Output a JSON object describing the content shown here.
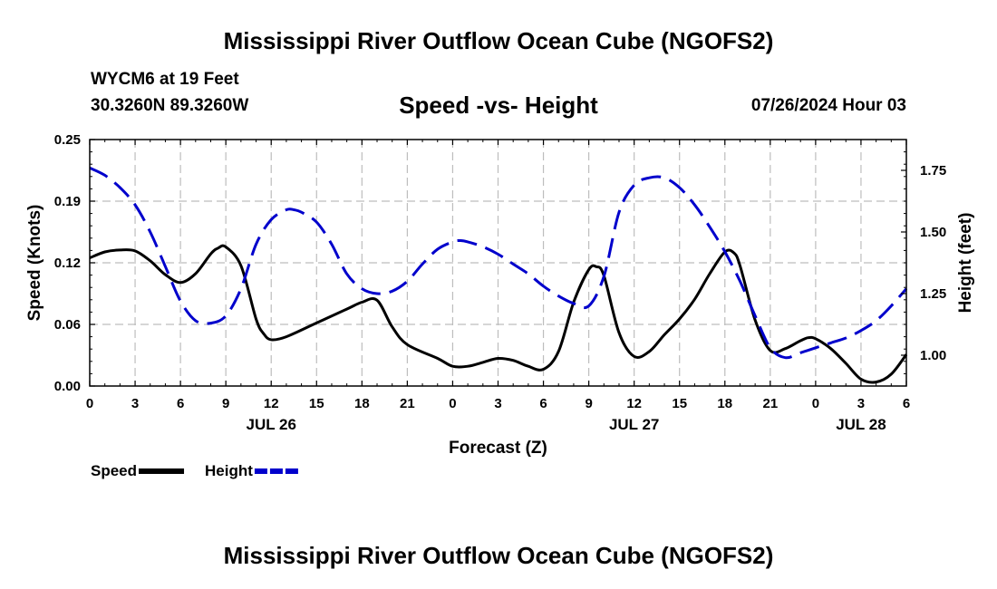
{
  "title": "Mississippi River Outflow Ocean Cube (NGOFS2)",
  "station": "WYCM6 at 19 Feet",
  "coordinates": "30.3260N  89.3260W",
  "subtitle": "Speed -vs- Height",
  "datestamp": "07/26/2024 Hour 03",
  "chart_data": {
    "type": "line",
    "title": "Speed -vs- Height",
    "xlabel": "Forecast (Z)",
    "ylabel": "Speed (Knots)",
    "ylabel_right": "Height (feet)",
    "x_range_hours": [
      0,
      54
    ],
    "x_ticks": [
      {
        "h": 0,
        "label": "0"
      },
      {
        "h": 3,
        "label": "3"
      },
      {
        "h": 6,
        "label": "6"
      },
      {
        "h": 9,
        "label": "9"
      },
      {
        "h": 12,
        "label": "12"
      },
      {
        "h": 15,
        "label": "15"
      },
      {
        "h": 18,
        "label": "18"
      },
      {
        "h": 21,
        "label": "21"
      },
      {
        "h": 24,
        "label": "0"
      },
      {
        "h": 27,
        "label": "3"
      },
      {
        "h": 30,
        "label": "6"
      },
      {
        "h": 33,
        "label": "9"
      },
      {
        "h": 36,
        "label": "12"
      },
      {
        "h": 39,
        "label": "15"
      },
      {
        "h": 42,
        "label": "18"
      },
      {
        "h": 45,
        "label": "21"
      },
      {
        "h": 48,
        "label": "0"
      },
      {
        "h": 51,
        "label": "3"
      },
      {
        "h": 54,
        "label": "6"
      }
    ],
    "date_labels": [
      {
        "h": 12,
        "label": "JUL 26"
      },
      {
        "h": 36,
        "label": "JUL 27"
      },
      {
        "h": 51,
        "label": "JUL 28"
      }
    ],
    "ylim_left": [
      0,
      0.25
    ],
    "yticks_left": [
      {
        "v": 0,
        "label": "0.00"
      },
      {
        "v": 0.0625,
        "label": "0.06"
      },
      {
        "v": 0.125,
        "label": "0.12"
      },
      {
        "v": 0.1875,
        "label": "0.19"
      },
      {
        "v": 0.25,
        "label": "0.25"
      }
    ],
    "ylim_right": [
      0.875,
      1.875
    ],
    "yticks_right": [
      {
        "v": 1.0,
        "label": "1.00"
      },
      {
        "v": 1.25,
        "label": "1.25"
      },
      {
        "v": 1.5,
        "label": "1.50"
      },
      {
        "v": 1.75,
        "label": "1.75"
      }
    ],
    "series": [
      {
        "name": "Speed",
        "axis": "left",
        "color": "#000000",
        "dash": "solid",
        "x": [
          0,
          1,
          2,
          3,
          4,
          5,
          6,
          7,
          8,
          8.5,
          9,
          10,
          11,
          11.5,
          12,
          13,
          15,
          17,
          18,
          19,
          20,
          21,
          23,
          24,
          25,
          26,
          27,
          28,
          29,
          30,
          31,
          32,
          33,
          33.5,
          34,
          35,
          36,
          37,
          38,
          39,
          40,
          41,
          42,
          42.6,
          43,
          44,
          45,
          46,
          47,
          47.5,
          48,
          49,
          50,
          51,
          52,
          53,
          54
        ],
        "y": [
          0.13,
          0.136,
          0.138,
          0.137,
          0.127,
          0.113,
          0.105,
          0.114,
          0.134,
          0.14,
          0.141,
          0.122,
          0.068,
          0.053,
          0.047,
          0.05,
          0.064,
          0.078,
          0.085,
          0.087,
          0.06,
          0.042,
          0.028,
          0.02,
          0.02,
          0.024,
          0.028,
          0.026,
          0.02,
          0.017,
          0.035,
          0.085,
          0.118,
          0.121,
          0.112,
          0.054,
          0.03,
          0.035,
          0.052,
          0.068,
          0.088,
          0.114,
          0.136,
          0.135,
          0.122,
          0.067,
          0.036,
          0.038,
          0.046,
          0.049,
          0.048,
          0.038,
          0.023,
          0.007,
          0.004,
          0.012,
          0.032
        ]
      },
      {
        "name": "Height",
        "axis": "right",
        "color": "#0000cc",
        "dash": "dashed",
        "x": [
          0,
          1,
          2,
          3,
          4,
          5,
          6,
          7,
          8,
          9,
          10,
          11,
          12,
          13,
          13.5,
          14,
          15,
          16,
          17,
          18,
          19,
          20,
          21,
          22,
          23,
          24,
          24.5,
          25,
          26,
          27,
          28,
          29,
          30,
          31,
          32,
          33,
          34,
          35,
          36,
          37,
          38,
          39,
          40,
          41,
          42,
          43,
          44,
          45,
          46,
          47,
          48,
          49,
          50,
          51,
          52,
          53,
          54
        ],
        "y": [
          1.76,
          1.73,
          1.68,
          1.61,
          1.5,
          1.36,
          1.22,
          1.14,
          1.13,
          1.16,
          1.27,
          1.45,
          1.55,
          1.59,
          1.59,
          1.58,
          1.54,
          1.45,
          1.33,
          1.27,
          1.25,
          1.26,
          1.3,
          1.37,
          1.43,
          1.46,
          1.465,
          1.46,
          1.44,
          1.41,
          1.37,
          1.33,
          1.28,
          1.24,
          1.21,
          1.2,
          1.32,
          1.58,
          1.69,
          1.72,
          1.72,
          1.68,
          1.61,
          1.52,
          1.42,
          1.3,
          1.16,
          1.03,
          0.99,
          1.01,
          1.03,
          1.05,
          1.07,
          1.1,
          1.14,
          1.2,
          1.27
        ]
      }
    ],
    "legend": [
      {
        "label": "Speed",
        "color": "#000000",
        "dash": "solid"
      },
      {
        "label": "Height",
        "color": "#0000cc",
        "dash": "dashed"
      }
    ],
    "legend_position": "bottom-left",
    "grid": true
  }
}
